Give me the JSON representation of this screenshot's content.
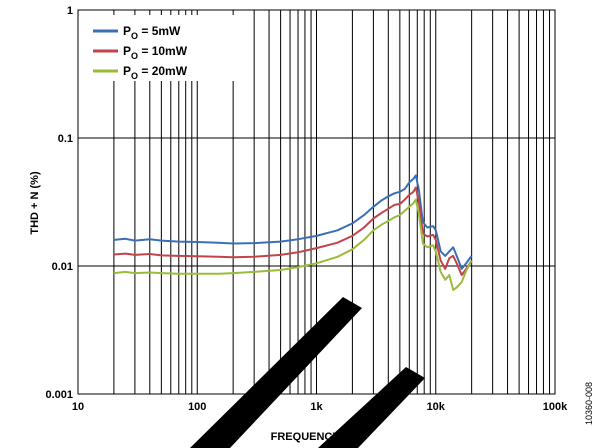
{
  "chart_data": {
    "type": "line",
    "title": "",
    "xlabel": "FREQUENCY (Hz)",
    "ylabel": "THD + N (%)",
    "x_scale": "log",
    "y_scale": "log",
    "xlim": [
      10,
      100000
    ],
    "ylim": [
      0.001,
      1
    ],
    "grid": true,
    "legend_position": "top-left",
    "x_tick_labels": [
      "10",
      "100",
      "1k",
      "10k",
      "100k"
    ],
    "y_tick_labels": [
      "0.001",
      "0.01",
      "0.1",
      "1"
    ],
    "x_ticks": [
      10,
      100,
      1000,
      10000,
      100000
    ],
    "y_ticks": [
      0.001,
      0.01,
      0.1,
      1
    ],
    "series": [
      {
        "name": "PO = 5mW",
        "legend_main": "P",
        "legend_sub": "O",
        "legend_rest": " = 5mW",
        "color": "#3a6fb5",
        "x": [
          20,
          25,
          30,
          40,
          50,
          70,
          100,
          150,
          200,
          300,
          500,
          700,
          1000,
          1500,
          2000,
          2500,
          3000,
          3500,
          4000,
          4500,
          5000,
          5500,
          6000,
          6500,
          6800,
          7200,
          7800,
          8500,
          9500,
          10000,
          11000,
          12000,
          13000,
          14000,
          15000,
          16500,
          18000,
          20000
        ],
        "y": [
          0.016,
          0.0163,
          0.0158,
          0.0162,
          0.0158,
          0.0155,
          0.0154,
          0.0152,
          0.015,
          0.0151,
          0.0155,
          0.0162,
          0.0172,
          0.019,
          0.0215,
          0.025,
          0.029,
          0.0325,
          0.035,
          0.037,
          0.038,
          0.04,
          0.045,
          0.048,
          0.051,
          0.04,
          0.022,
          0.02,
          0.0205,
          0.019,
          0.013,
          0.012,
          0.013,
          0.014,
          0.012,
          0.0095,
          0.0105,
          0.012
        ]
      },
      {
        "name": "PO = 10mW",
        "legend_main": "P",
        "legend_sub": "O",
        "legend_rest": " = 10mW",
        "color": "#c1444a",
        "x": [
          20,
          25,
          30,
          40,
          50,
          70,
          100,
          150,
          200,
          300,
          500,
          700,
          1000,
          1500,
          2000,
          2500,
          3000,
          3500,
          4000,
          4500,
          5000,
          5500,
          6000,
          6500,
          6800,
          7200,
          7800,
          8500,
          9500,
          10000,
          11000,
          12000,
          13000,
          14000,
          15000,
          16500,
          18000,
          20000
        ],
        "y": [
          0.0123,
          0.0125,
          0.0122,
          0.0124,
          0.0121,
          0.012,
          0.0119,
          0.0118,
          0.0117,
          0.0118,
          0.0122,
          0.0128,
          0.0138,
          0.0152,
          0.0172,
          0.02,
          0.0235,
          0.026,
          0.028,
          0.03,
          0.0305,
          0.033,
          0.036,
          0.038,
          0.041,
          0.032,
          0.018,
          0.017,
          0.0175,
          0.016,
          0.011,
          0.0095,
          0.0115,
          0.012,
          0.0105,
          0.0085,
          0.0095,
          0.011
        ]
      },
      {
        "name": "PO = 20mW",
        "legend_main": "P",
        "legend_sub": "O",
        "legend_rest": " = 20mW",
        "color": "#9bbb3b",
        "x": [
          20,
          25,
          30,
          40,
          50,
          70,
          100,
          150,
          200,
          300,
          500,
          700,
          1000,
          1500,
          2000,
          2500,
          3000,
          3500,
          4000,
          4500,
          5000,
          5500,
          6000,
          6500,
          6800,
          7200,
          7800,
          8500,
          9500,
          10000,
          11000,
          12000,
          13000,
          14000,
          15000,
          16500,
          18000,
          20000
        ],
        "y": [
          0.0088,
          0.009,
          0.0088,
          0.0089,
          0.0088,
          0.0087,
          0.0087,
          0.0087,
          0.0088,
          0.009,
          0.0093,
          0.0098,
          0.0105,
          0.0118,
          0.0135,
          0.016,
          0.019,
          0.021,
          0.0225,
          0.024,
          0.025,
          0.027,
          0.029,
          0.031,
          0.033,
          0.026,
          0.015,
          0.014,
          0.0145,
          0.013,
          0.009,
          0.0078,
          0.0085,
          0.0065,
          0.0068,
          0.0075,
          0.0092,
          0.011
        ]
      }
    ]
  },
  "figure_id": "10360-008",
  "watermark_color": "#000000"
}
